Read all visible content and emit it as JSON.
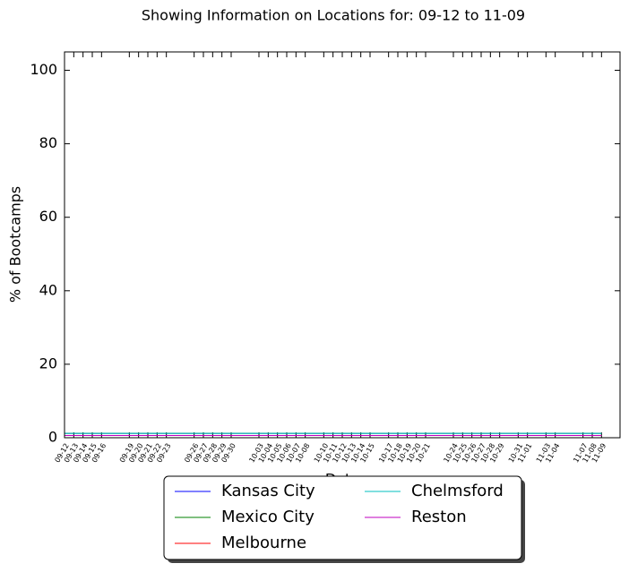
{
  "chart_data": {
    "type": "line",
    "title": "Showing Information on Locations for: 09-12 to 11-09",
    "x_label": "Date",
    "y_label": "% of Bootcamps",
    "x": [
      "09-12",
      "09-13",
      "09-14",
      "09-15",
      "09-16",
      "09-19",
      "09-20",
      "09-21",
      "09-22",
      "09-23",
      "09-26",
      "09-27",
      "09-28",
      "09-29",
      "09-30",
      "10-03",
      "10-04",
      "10-05",
      "10-06",
      "10-07",
      "10-08",
      "10-10",
      "10-11",
      "10-12",
      "10-13",
      "10-14",
      "10-15",
      "10-17",
      "10-18",
      "10-19",
      "10-20",
      "10-21",
      "10-24",
      "10-25",
      "10-26",
      "10-27",
      "10-28",
      "10-29",
      "10-31",
      "11-01",
      "11-03",
      "11-04",
      "11-07",
      "11-08",
      "11-09"
    ],
    "xlim": [
      "09-12",
      "11-11"
    ],
    "ylim": [
      0,
      105
    ],
    "yticks": [
      0,
      20,
      40,
      60,
      80,
      100
    ],
    "legend": "lower center",
    "series": [
      {
        "name": "Kansas City",
        "color": "#0000ff",
        "values": [
          1.2,
          1.2,
          1.2,
          1.2,
          1.2,
          1.2,
          1.2,
          1.2,
          1.2,
          1.2,
          1.2,
          1.2,
          1.2,
          1.2,
          1.2,
          1.2,
          1.2,
          1.2,
          1.2,
          1.2,
          1.2,
          1.2,
          1.2,
          1.2,
          1.2,
          1.2,
          1.2,
          1.2,
          1.2,
          1.2,
          1.2,
          1.2,
          1.2,
          1.2,
          1.2,
          1.2,
          1.2,
          1.2,
          1.2,
          1.2,
          1.2,
          1.2,
          1.2,
          1.2,
          1.2
        ]
      },
      {
        "name": "Mexico City",
        "color": "#008000",
        "values": [
          1.2,
          1.2,
          1.2,
          1.2,
          1.2,
          1.2,
          1.2,
          1.2,
          1.2,
          1.2,
          1.2,
          1.2,
          1.2,
          1.2,
          1.2,
          1.2,
          1.2,
          1.2,
          1.2,
          1.2,
          1.2,
          1.2,
          1.2,
          1.2,
          1.2,
          1.2,
          1.2,
          1.2,
          1.2,
          1.2,
          1.2,
          1.2,
          1.2,
          1.2,
          1.2,
          1.2,
          1.2,
          1.2,
          1.2,
          1.2,
          1.2,
          1.2,
          1.2,
          1.2,
          1.2
        ]
      },
      {
        "name": "Melbourne",
        "color": "#ff0000",
        "values": [
          0.6,
          0.6,
          0.6,
          0.6,
          0.6,
          0.6,
          0.6,
          0.6,
          0.6,
          0.6,
          0.6,
          0.6,
          0.6,
          0.6,
          0.6,
          0.6,
          0.6,
          0.6,
          0.6,
          0.6,
          0.6,
          0.6,
          0.6,
          0.6,
          0.6,
          0.6,
          0.6,
          0.6,
          0.6,
          0.6,
          0.6,
          0.6,
          0.6,
          0.6,
          0.6,
          0.6,
          0.6,
          0.6,
          0.6,
          0.6,
          0.6,
          0.6,
          0.6,
          0.6,
          0.6
        ]
      },
      {
        "name": "Chelmsford",
        "color": "#00bfbf",
        "values": [
          1.2,
          1.2,
          1.2,
          1.2,
          1.2,
          1.2,
          1.2,
          1.2,
          1.2,
          1.2,
          1.2,
          1.2,
          1.2,
          1.2,
          1.2,
          1.2,
          1.2,
          1.2,
          1.2,
          1.2,
          1.2,
          1.2,
          1.2,
          1.2,
          1.2,
          1.2,
          1.2,
          1.2,
          1.2,
          1.2,
          1.2,
          1.2,
          1.2,
          1.2,
          1.2,
          1.2,
          1.2,
          1.2,
          1.2,
          1.2,
          1.2,
          1.2,
          1.2,
          1.2,
          1.2
        ]
      },
      {
        "name": "Reston",
        "color": "#bf00bf",
        "values": [
          0.6,
          0.6,
          0.6,
          0.6,
          0.6,
          0.6,
          0.6,
          0.6,
          0.6,
          0.6,
          0.6,
          0.6,
          0.6,
          0.6,
          0.6,
          0.6,
          0.6,
          0.6,
          0.6,
          0.6,
          0.6,
          0.6,
          0.6,
          0.6,
          0.6,
          0.6,
          0.6,
          0.6,
          0.6,
          0.6,
          0.6,
          0.6,
          0.6,
          0.6,
          0.6,
          0.6,
          0.6,
          0.6,
          0.6,
          0.6,
          0.6,
          0.6,
          0.6,
          0.6,
          0.6
        ]
      }
    ]
  }
}
